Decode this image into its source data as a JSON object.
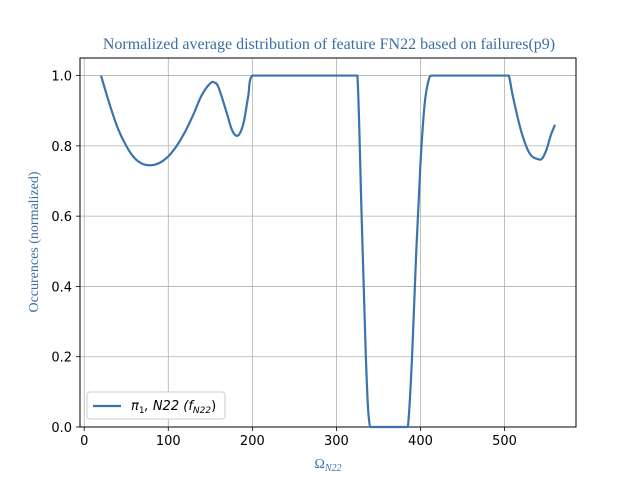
{
  "chart_data": {
    "type": "line",
    "title": "Normalized average distribution of feature FN22 based on failures(p9)",
    "xlabel": "Ω",
    "xlabel_sub": "N22",
    "ylabel": "Occurences (normalized)",
    "xlim": [
      -5,
      585
    ],
    "ylim": [
      0.0,
      1.05
    ],
    "xticks": [
      0,
      100,
      200,
      300,
      400,
      500
    ],
    "yticks": [
      0.0,
      0.2,
      0.4,
      0.6,
      0.8,
      1.0
    ],
    "xtick_labels": [
      "0",
      "100",
      "200",
      "300",
      "400",
      "500"
    ],
    "ytick_labels": [
      "0.0",
      "0.2",
      "0.4",
      "0.6",
      "0.8",
      "1.0"
    ],
    "grid": true,
    "legend_position": "lower-left",
    "series": [
      {
        "name": "π1, N22 (fN22)",
        "legend_parts": {
          "pi": "π",
          "pi_sub": "1",
          "mid": ", N22 (",
          "f": "f",
          "f_sub": "N22",
          "end": ")"
        },
        "color": "#3a74ae",
        "x": [
          20,
          30,
          40,
          50,
          60,
          70,
          80,
          90,
          100,
          110,
          120,
          130,
          140,
          150,
          155,
          160,
          170,
          175,
          180,
          185,
          190,
          195,
          200,
          220,
          250,
          280,
          300,
          320,
          325,
          330,
          335,
          340,
          350,
          360,
          370,
          380,
          385,
          390,
          395,
          400,
          405,
          410,
          413,
          420,
          450,
          480,
          500,
          505,
          510,
          520,
          530,
          540,
          545,
          550,
          555,
          560
        ],
        "y": [
          1.0,
          0.92,
          0.85,
          0.8,
          0.765,
          0.748,
          0.745,
          0.752,
          0.77,
          0.8,
          0.84,
          0.89,
          0.945,
          0.978,
          0.98,
          0.965,
          0.89,
          0.85,
          0.83,
          0.835,
          0.87,
          0.94,
          1.0,
          1.0,
          1.0,
          1.0,
          1.0,
          1.0,
          1.0,
          0.6,
          0.2,
          0.0,
          0.0,
          0.0,
          0.0,
          0.0,
          0.0,
          0.2,
          0.5,
          0.75,
          0.92,
          0.99,
          1.0,
          1.0,
          1.0,
          1.0,
          1.0,
          1.0,
          0.94,
          0.84,
          0.778,
          0.762,
          0.765,
          0.79,
          0.83,
          0.86
        ]
      }
    ]
  }
}
